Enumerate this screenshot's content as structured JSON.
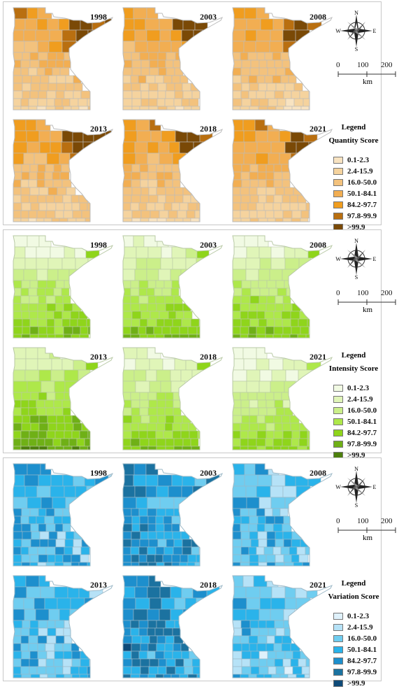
{
  "panels": [
    {
      "id": "quantity",
      "legend_heading": "Legend",
      "legend_title": "Quantity Score",
      "years": [
        "1998",
        "2003",
        "2008",
        "2013",
        "2018",
        "2021"
      ],
      "colors": [
        "#f8e3c1",
        "#f5d39e",
        "#f3c27d",
        "#f2ae52",
        "#f09d1f",
        "#b96f10",
        "#7a4906"
      ],
      "outline": "#bbbbbb",
      "pattern": "quantity"
    },
    {
      "id": "intensity",
      "legend_heading": "Legend",
      "legend_title": "Intensity Score",
      "years": [
        "1998",
        "2003",
        "2008",
        "2013",
        "2018",
        "2021"
      ],
      "colors": [
        "#f1fae3",
        "#e0f5b8",
        "#cbef8a",
        "#aee84a",
        "#8fd51b",
        "#6fb016",
        "#4c7f0c"
      ],
      "outline": "#b8c9a5",
      "pattern": "intensity"
    },
    {
      "id": "variation",
      "legend_heading": "Legend",
      "legend_title": "Variation Score",
      "years": [
        "1998",
        "2003",
        "2008",
        "2013",
        "2018",
        "2021"
      ],
      "colors": [
        "#dff1fb",
        "#b6e2f7",
        "#6fcdf0",
        "#2ab3ea",
        "#1d8fcd",
        "#1b72a0",
        "#0e4a78"
      ],
      "outline": "#9bb8c7",
      "pattern": "variation"
    }
  ],
  "legend_labels": [
    "0.1-2.3",
    "2.4-15.9",
    "16.0-50.0",
    "50.1-84.1",
    "84.2-97.7",
    "97.8-99.9",
    ">99.9"
  ],
  "compass": {
    "N": "N",
    "S": "S",
    "E": "E",
    "W": "W"
  },
  "scalebar": {
    "ticks": [
      "0",
      "100",
      "200"
    ],
    "unit": "km"
  }
}
